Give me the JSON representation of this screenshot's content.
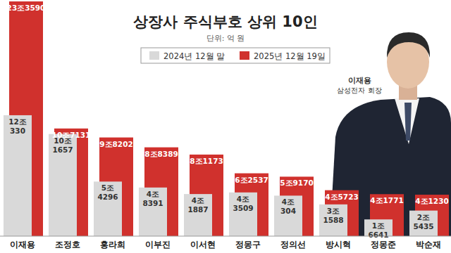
{
  "chart_data": {
    "type": "bar",
    "title": "상장사 주식부호 상위 10인",
    "subtitle": "단위: 억 원",
    "categories": [
      "이재용",
      "조정호",
      "홍라희",
      "이부진",
      "이서현",
      "정몽구",
      "정의선",
      "방시혁",
      "정몽준",
      "박순재"
    ],
    "series": [
      {
        "name": "2024년 12월 말",
        "color": "#d9d9d9",
        "values": [
          120330,
          101657,
          54296,
          48391,
          41887,
          43509,
          40304,
          31588,
          16641,
          25435
        ],
        "value_labels": [
          "12조330",
          "10조1657",
          "5조4296",
          "4조8391",
          "4조1887",
          "4조3509",
          "4조304",
          "3조1588",
          "1조6641",
          "2조5435"
        ]
      },
      {
        "name": "2025년 12월 19일",
        "color": "#d0312d",
        "values": [
          233590,
          107131,
          98202,
          88389,
          81173,
          62537,
          59170,
          45723,
          41771,
          41230
        ],
        "value_labels": [
          "23조3590",
          "10조7131",
          "9조8202",
          "8조8389",
          "8조1173",
          "6조2537",
          "5조9170",
          "4조5723",
          "4조1771",
          "4조1230"
        ]
      }
    ],
    "ylim": [
      0,
      235000
    ],
    "tick_labels": "x",
    "data_labels": true,
    "legend": "top",
    "annotations": [
      "이재용",
      "삼성전자 회장"
    ]
  }
}
